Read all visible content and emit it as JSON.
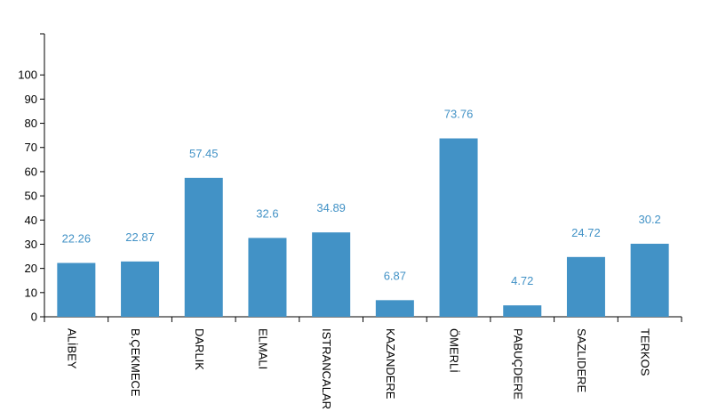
{
  "colors": {
    "bar": "#4292c6",
    "label": "#4292c6",
    "axis": "#000000"
  },
  "chart_data": {
    "type": "bar",
    "title": "",
    "xlabel": "",
    "ylabel": "",
    "categories": [
      "ALİBEY",
      "B.ÇEKMECE",
      "DARLIK",
      "ELMALI",
      "ISTRANCALAR",
      "KAZANDERE",
      "ÖMERLİ",
      "PABUÇDERE",
      "SAZLIDERE",
      "TERKOS"
    ],
    "values": [
      22.26,
      22.87,
      57.45,
      32.6,
      34.89,
      6.87,
      73.76,
      4.72,
      24.72,
      30.2
    ],
    "value_labels": [
      "22.26",
      "22.87",
      "57.45",
      "32.6",
      "34.89",
      "6.87",
      "73.76",
      "4.72",
      "24.72",
      "30.2"
    ],
    "yticks": [
      0,
      10,
      20,
      30,
      40,
      50,
      60,
      70,
      80,
      90,
      100
    ],
    "ylim": [
      0,
      117
    ],
    "grid": false,
    "legend": "none"
  }
}
